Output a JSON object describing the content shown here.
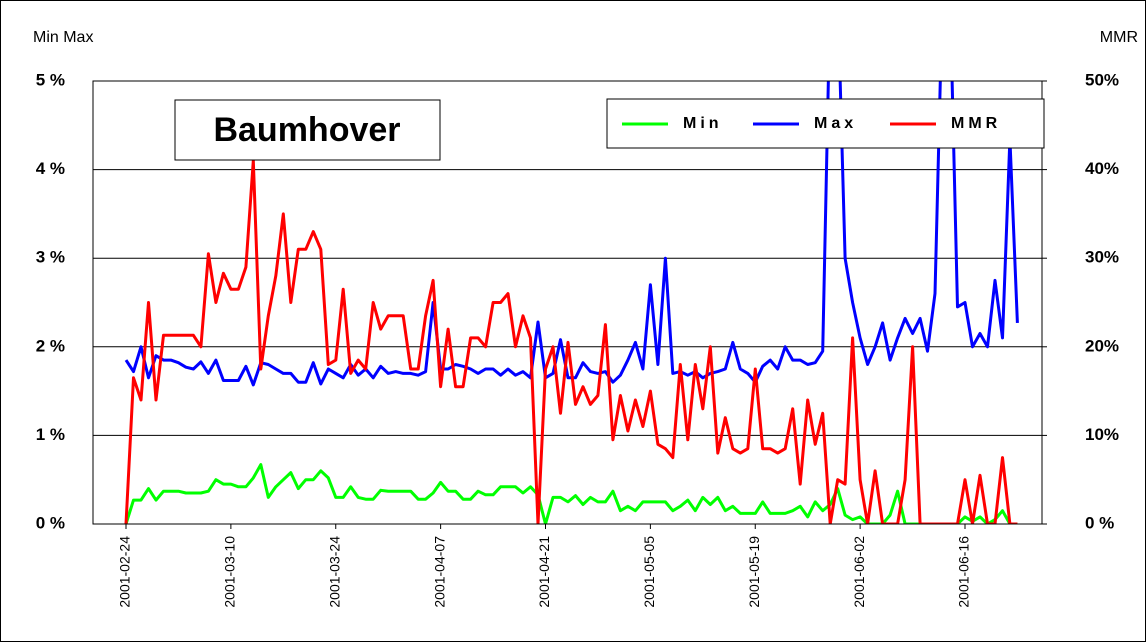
{
  "chart_data": {
    "type": "line",
    "annotation": "Baumhover",
    "ylabel": "Min Max",
    "y2label": "MMR",
    "x": [
      "2001-02-24",
      "2001-02-25",
      "2001-02-26",
      "2001-02-27",
      "2001-02-28",
      "2001-03-01",
      "2001-03-02",
      "2001-03-03",
      "2001-03-04",
      "2001-03-05",
      "2001-03-06",
      "2001-03-07",
      "2001-03-08",
      "2001-03-09",
      "2001-03-10",
      "2001-03-11",
      "2001-03-12",
      "2001-03-13",
      "2001-03-14",
      "2001-03-15",
      "2001-03-16",
      "2001-03-17",
      "2001-03-18",
      "2001-03-19",
      "2001-03-20",
      "2001-03-21",
      "2001-03-22",
      "2001-03-23",
      "2001-03-24",
      "2001-03-25",
      "2001-03-26",
      "2001-03-27",
      "2001-03-28",
      "2001-03-29",
      "2001-03-30",
      "2001-03-31",
      "2001-04-01",
      "2001-04-02",
      "2001-04-03",
      "2001-04-04",
      "2001-04-05",
      "2001-04-06",
      "2001-04-07",
      "2001-04-08",
      "2001-04-09",
      "2001-04-10",
      "2001-04-11",
      "2001-04-12",
      "2001-04-13",
      "2001-04-14",
      "2001-04-15",
      "2001-04-16",
      "2001-04-17",
      "2001-04-18",
      "2001-04-19",
      "2001-04-20",
      "2001-04-21",
      "2001-04-22",
      "2001-04-23",
      "2001-04-24",
      "2001-04-25",
      "2001-04-26",
      "2001-04-27",
      "2001-04-28",
      "2001-04-29",
      "2001-04-30",
      "2001-05-01",
      "2001-05-02",
      "2001-05-03",
      "2001-05-04",
      "2001-05-05",
      "2001-05-06",
      "2001-05-07",
      "2001-05-08",
      "2001-05-09",
      "2001-05-10",
      "2001-05-11",
      "2001-05-12",
      "2001-05-13",
      "2001-05-14",
      "2001-05-15",
      "2001-05-16",
      "2001-05-17",
      "2001-05-18",
      "2001-05-19",
      "2001-05-20",
      "2001-05-21",
      "2001-05-22",
      "2001-05-23",
      "2001-05-24",
      "2001-05-25",
      "2001-05-26",
      "2001-05-27",
      "2001-05-28",
      "2001-05-29",
      "2001-05-30",
      "2001-05-31",
      "2001-06-01",
      "2001-06-02",
      "2001-06-03",
      "2001-06-04",
      "2001-06-05",
      "2001-06-06",
      "2001-06-07",
      "2001-06-08",
      "2001-06-09",
      "2001-06-10",
      "2001-06-11",
      "2001-06-12",
      "2001-06-13",
      "2001-06-14",
      "2001-06-15",
      "2001-06-16",
      "2001-06-17",
      "2001-06-18",
      "2001-06-19",
      "2001-06-20",
      "2001-06-21",
      "2001-06-22",
      "2001-06-23"
    ],
    "xticks": [
      "2001-02-24",
      "2001-03-10",
      "2001-03-24",
      "2001-04-07",
      "2001-04-21",
      "2001-05-05",
      "2001-05-19",
      "2001-06-02",
      "2001-06-16"
    ],
    "series": [
      {
        "name": "Min",
        "color": "#00ff00",
        "values": [
          0,
          0.27,
          0.27,
          0.4,
          0.27,
          0.37,
          0.37,
          0.37,
          0.35,
          0.35,
          0.35,
          0.37,
          0.5,
          0.45,
          0.45,
          0.42,
          0.42,
          0.52,
          0.67,
          0.3,
          0.42,
          0.5,
          0.58,
          0.4,
          0.5,
          0.5,
          0.6,
          0.52,
          0.3,
          0.3,
          0.42,
          0.3,
          0.28,
          0.28,
          0.38,
          0.37,
          0.37,
          0.37,
          0.37,
          0.28,
          0.28,
          0.35,
          0.47,
          0.37,
          0.37,
          0.28,
          0.28,
          0.37,
          0.33,
          0.33,
          0.42,
          0.42,
          0.42,
          0.35,
          0.42,
          0.33,
          0,
          0.3,
          0.3,
          0.25,
          0.32,
          0.22,
          0.3,
          0.25,
          0.25,
          0.37,
          0.15,
          0.2,
          0.15,
          0.25,
          0.25,
          0.25,
          0.25,
          0.15,
          0.2,
          0.27,
          0.15,
          0.3,
          0.22,
          0.3,
          0.15,
          0.2,
          0.12,
          0.12,
          0.12,
          0.25,
          0.12,
          0.12,
          0.12,
          0.15,
          0.2,
          0.08,
          0.25,
          0.15,
          0.22,
          0.4,
          0.1,
          0.05,
          0.08,
          0,
          0,
          0,
          0.1,
          0.37,
          0,
          0,
          0,
          0,
          0,
          0,
          0,
          0,
          0.08,
          0.03,
          0.08,
          0,
          0.05,
          0.15,
          0,
          0
        ]
      },
      {
        "name": "Max",
        "color": "#0000ff",
        "values": [
          1.85,
          1.72,
          2.0,
          1.65,
          1.9,
          1.85,
          1.85,
          1.82,
          1.77,
          1.75,
          1.83,
          1.7,
          1.85,
          1.62,
          1.62,
          1.62,
          1.78,
          1.57,
          1.82,
          1.8,
          1.75,
          1.7,
          1.7,
          1.6,
          1.6,
          1.82,
          1.58,
          1.75,
          1.7,
          1.65,
          1.8,
          1.68,
          1.75,
          1.65,
          1.78,
          1.7,
          1.72,
          1.7,
          1.7,
          1.68,
          1.72,
          2.5,
          1.75,
          1.75,
          1.8,
          1.78,
          1.75,
          1.7,
          1.75,
          1.75,
          1.68,
          1.75,
          1.68,
          1.72,
          1.65,
          2.28,
          1.65,
          1.7,
          2.08,
          1.65,
          1.65,
          1.82,
          1.72,
          1.7,
          1.72,
          1.6,
          1.68,
          1.85,
          2.05,
          1.75,
          2.7,
          1.8,
          3.0,
          1.7,
          1.72,
          1.68,
          1.72,
          1.65,
          1.7,
          1.72,
          1.75,
          2.05,
          1.75,
          1.7,
          1.6,
          1.78,
          1.85,
          1.75,
          2.0,
          1.85,
          1.85,
          1.8,
          1.82,
          1.95,
          6,
          6,
          3.0,
          2.5,
          2.1,
          1.8,
          2.0,
          2.27,
          1.85,
          2.1,
          2.32,
          2.15,
          2.32,
          1.95,
          2.6,
          6,
          6,
          2.45,
          2.5,
          2.0,
          2.15,
          2.0,
          2.75,
          2.1,
          4.35,
          2.27
        ]
      },
      {
        "name": "MMR",
        "color": "#ff0000",
        "axis": "y2",
        "values": [
          0,
          16.5,
          14,
          25,
          14,
          21.3,
          21.3,
          21.3,
          21.3,
          21.3,
          20,
          30.5,
          25,
          28.3,
          26.5,
          26.5,
          29,
          41,
          17.5,
          23.5,
          28,
          35,
          25,
          31,
          31,
          33,
          31,
          18,
          18.5,
          26.5,
          17,
          18.5,
          17.5,
          25,
          22,
          23.5,
          23.5,
          23.5,
          17.5,
          17.5,
          23.5,
          27.5,
          15.5,
          22,
          15.5,
          15.5,
          21,
          21,
          20,
          25,
          25,
          26,
          20,
          23.5,
          21,
          0,
          17.5,
          20,
          12.5,
          20.5,
          13.5,
          15.5,
          13.5,
          14.5,
          22.5,
          9.5,
          14.5,
          10.5,
          14,
          11,
          15,
          9,
          8.5,
          7.5,
          18,
          9.5,
          18,
          13,
          20,
          8,
          12,
          8.5,
          8,
          8.5,
          17.5,
          8.5,
          8.5,
          8,
          8.5,
          13,
          4.5,
          14,
          9,
          12.5,
          0,
          5,
          4.5,
          21,
          5,
          0,
          6,
          0,
          0,
          0,
          5,
          20,
          0,
          0,
          0,
          0,
          0,
          0,
          5,
          0,
          5.5,
          0,
          0,
          7.5,
          0,
          0
        ]
      }
    ],
    "ylim": [
      0,
      5
    ],
    "yticks": [
      {
        "value": 0,
        "label": "0 %"
      },
      {
        "value": 1,
        "label": "1 %"
      },
      {
        "value": 2,
        "label": "2 %"
      },
      {
        "value": 3,
        "label": "3 %"
      },
      {
        "value": 4,
        "label": "4 %"
      },
      {
        "value": 5,
        "label": "5 %"
      }
    ],
    "y2lim": [
      0,
      50
    ],
    "y2ticks": [
      {
        "value": 0,
        "label": "0 %"
      },
      {
        "value": 10,
        "label": "10%"
      },
      {
        "value": 20,
        "label": "20%"
      },
      {
        "value": 30,
        "label": "30%"
      },
      {
        "value": 40,
        "label": "40%"
      },
      {
        "value": 50,
        "label": "50%"
      }
    ],
    "grid": true,
    "legend": "upper right"
  }
}
